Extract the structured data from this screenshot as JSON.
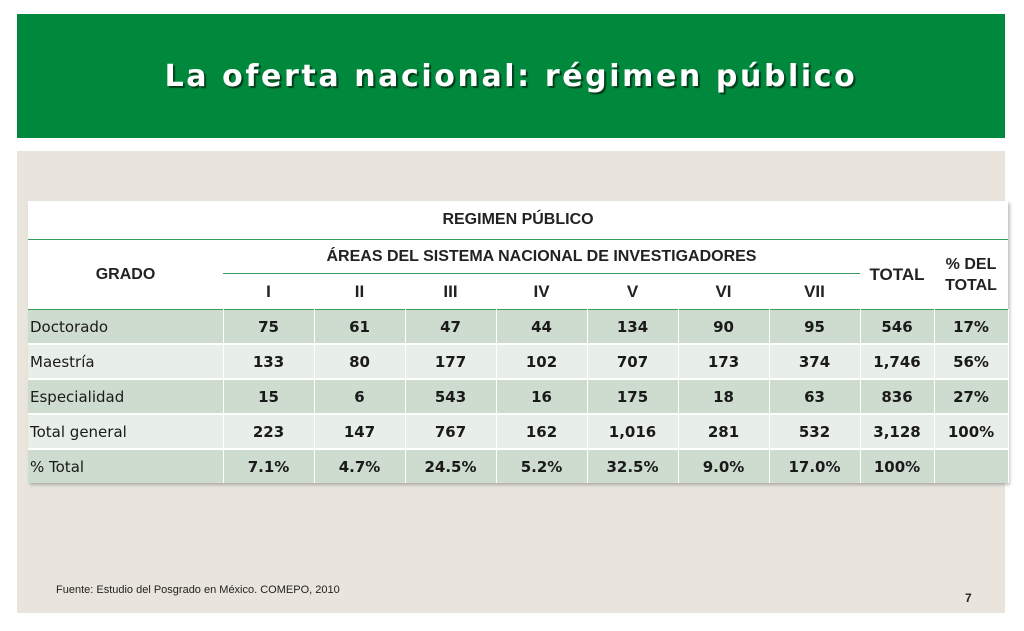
{
  "title": "La oferta nacional: régimen público",
  "table": {
    "caption": "REGIMEN PÚBLICO",
    "grado_header": "GRADO",
    "areas_header": "ÁREAS DEL SISTEMA NACIONAL DE INVESTIGADORES",
    "total_header": "TOTAL",
    "pct_header_line1": "% DEL",
    "pct_header_line2": "TOTAL",
    "area_columns": [
      "I",
      "II",
      "III",
      "IV",
      "V",
      "VI",
      "VII"
    ],
    "rows": [
      {
        "label": "Doctorado",
        "values": [
          "75",
          "61",
          "47",
          "44",
          "134",
          "90",
          "95"
        ],
        "total": "546",
        "pct": "17%"
      },
      {
        "label": "Maestría",
        "values": [
          "133",
          "80",
          "177",
          "102",
          "707",
          "173",
          "374"
        ],
        "total": "1,746",
        "pct": "56%"
      },
      {
        "label": "Especialidad",
        "values": [
          "15",
          "6",
          "543",
          "16",
          "175",
          "18",
          "63"
        ],
        "total": "836",
        "pct": "27%"
      },
      {
        "label": "Total general",
        "values": [
          "223",
          "147",
          "767",
          "162",
          "1,016",
          "281",
          "532"
        ],
        "total": "3,128",
        "pct": "100%"
      },
      {
        "label": "% Total",
        "values": [
          "7.1%",
          "4.7%",
          "24.5%",
          "5.2%",
          "32.5%",
          "9.0%",
          "17.0%"
        ],
        "total": "100%",
        "pct": ""
      }
    ]
  },
  "source": "Fuente:  Estudio del Posgrado en México. COMEPO, 2010",
  "page_number": "7",
  "colors": {
    "header_green": "#00893d",
    "panel_bg": "#e9e5dd",
    "row_dark": "#cddcce",
    "row_light": "#e8efe8"
  }
}
